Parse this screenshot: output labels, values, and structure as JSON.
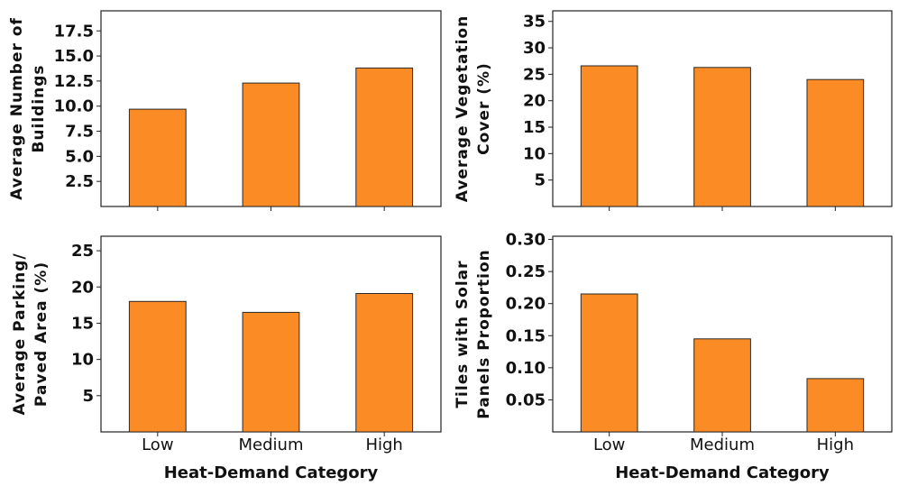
{
  "chart_data": [
    {
      "type": "bar",
      "categories": [
        "Low",
        "Medium",
        "High"
      ],
      "values": [
        9.7,
        12.3,
        13.8
      ],
      "ylabel": [
        "Average Number of",
        "Buildings"
      ],
      "xlabel": "",
      "ylim": [
        0,
        19.5
      ],
      "yticks": [
        "2.5",
        "5.0",
        "7.5",
        "10.0",
        "12.5",
        "15.0",
        "17.5"
      ],
      "show_x_tick_labels": false
    },
    {
      "type": "bar",
      "categories": [
        "Low",
        "Medium",
        "High"
      ],
      "values": [
        26.6,
        26.3,
        24.0
      ],
      "ylabel": [
        "Average Vegetation",
        "Cover (%)"
      ],
      "xlabel": "",
      "ylim": [
        0,
        37
      ],
      "yticks": [
        "5",
        "10",
        "15",
        "20",
        "25",
        "30",
        "35"
      ],
      "show_x_tick_labels": false
    },
    {
      "type": "bar",
      "categories": [
        "Low",
        "Medium",
        "High"
      ],
      "values": [
        18.0,
        16.5,
        19.1
      ],
      "ylabel": [
        "Average Parking/",
        "Paved Area (%)"
      ],
      "xlabel": "Heat-Demand Category",
      "ylim": [
        0,
        27
      ],
      "yticks": [
        "5",
        "10",
        "15",
        "20",
        "25"
      ],
      "show_x_tick_labels": true
    },
    {
      "type": "bar",
      "categories": [
        "Low",
        "Medium",
        "High"
      ],
      "values": [
        0.215,
        0.145,
        0.083
      ],
      "ylabel": [
        "Tiles with Solar",
        "Panels Proportion"
      ],
      "xlabel": "Heat-Demand Category",
      "ylim": [
        0,
        0.305
      ],
      "yticks": [
        "0.05",
        "0.10",
        "0.15",
        "0.20",
        "0.25",
        "0.30"
      ],
      "show_x_tick_labels": true
    }
  ],
  "colors": {
    "bar_fill": "#fb8b24",
    "bar_edge": "#2a2a2a",
    "axis": "#222222",
    "text": "#111111"
  }
}
